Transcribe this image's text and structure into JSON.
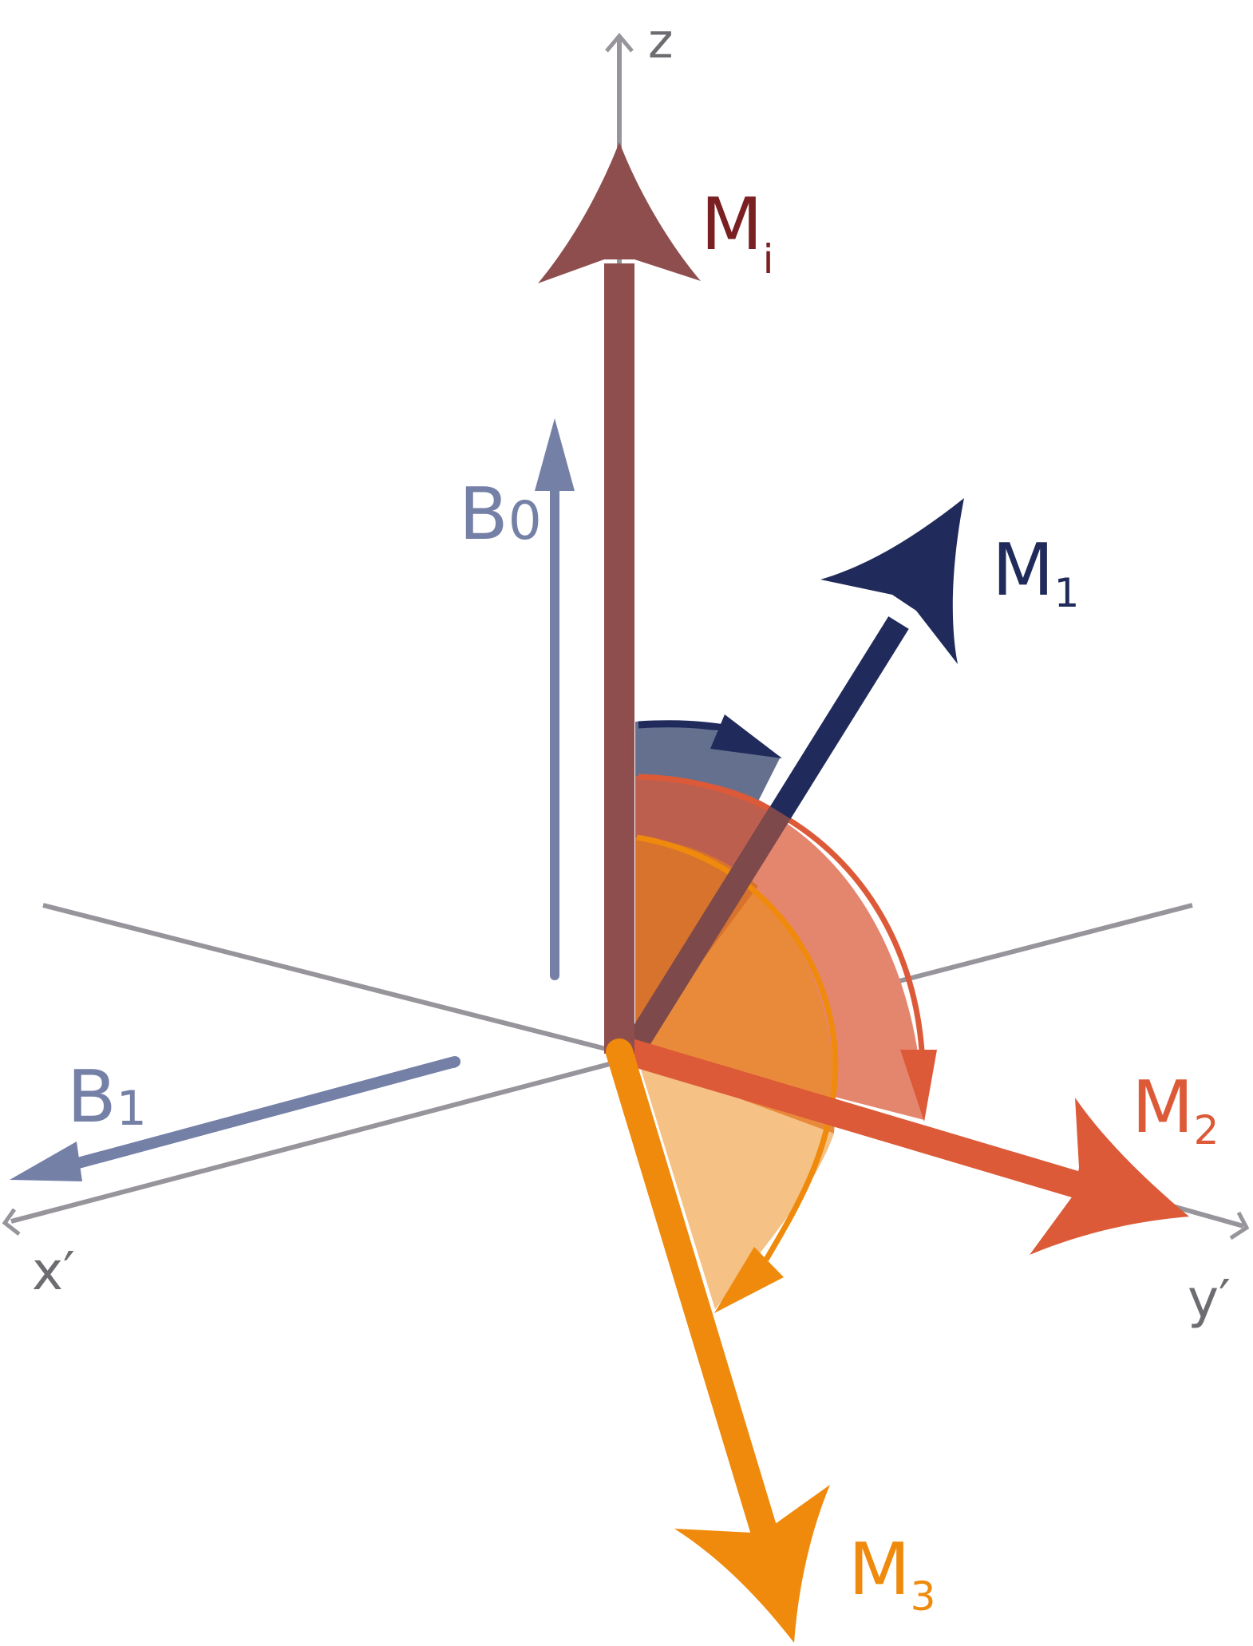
{
  "axes": {
    "z": "z",
    "x": "x′",
    "y": "y′"
  },
  "vectors": {
    "Mi": {
      "main": "M",
      "sub": "i"
    },
    "M1": {
      "main": "M",
      "sub": "1"
    },
    "M2": {
      "main": "M",
      "sub": "2"
    },
    "M3": {
      "main": "M",
      "sub": "3"
    },
    "B0": {
      "main": "B",
      "sub": "0"
    },
    "B1": {
      "main": "B",
      "sub": "1"
    }
  },
  "colors": {
    "axis": "#97959b",
    "axis_label": "#6e6c70",
    "Mi": "#8e4e4e",
    "Mi_label": "#7a2023",
    "M1": "#202b5b",
    "M2": "#dc5a38",
    "M3": "#ef8a0c",
    "B": "#7580a7",
    "wedge_blue": "#65708f",
    "wedge_red": "#e4866e",
    "wedge_orange": "#e98a3b",
    "wedge_light": "#f5c184"
  }
}
